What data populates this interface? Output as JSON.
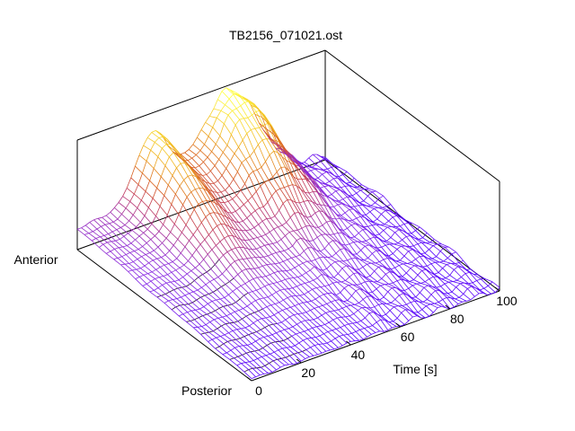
{
  "chart_data": {
    "type": "surface",
    "title": "TB2156_071021.ost",
    "xlabel": "Time [s]",
    "ylabel_start": "Anterior",
    "ylabel_end": "Posterior",
    "x_ticks": [
      "0",
      "20",
      "40",
      "60",
      "80",
      "100"
    ],
    "x_range": [
      0,
      100
    ],
    "y_categories": [
      "Anterior",
      "Posterior"
    ],
    "z_range": [
      0,
      1
    ],
    "grid": false,
    "legend": "none",
    "colormap": [
      "#5000ff",
      "#8a2be2",
      "#c23a5a",
      "#d86020",
      "#f0b020",
      "#ffff40"
    ],
    "mesh_line_color_dark": "#000000"
  }
}
